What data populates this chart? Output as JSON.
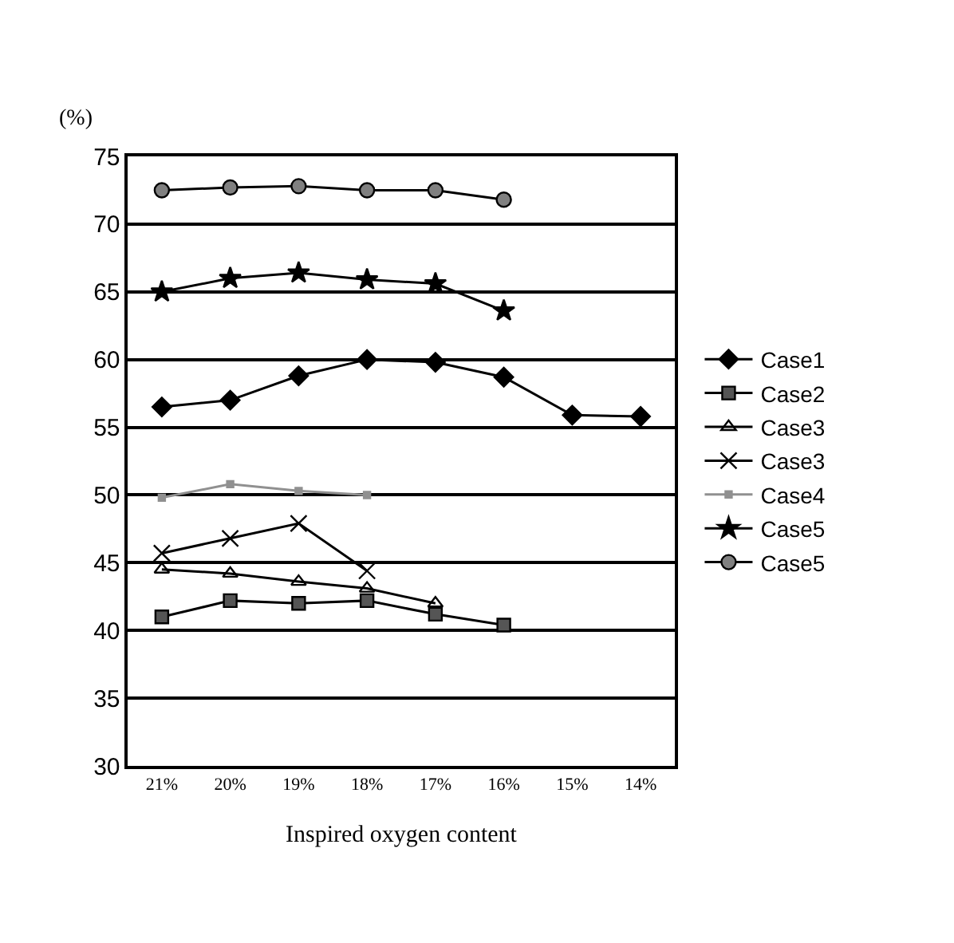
{
  "chart_data": {
    "type": "line",
    "ylabel": "(%)",
    "xlabel": "Inspired oxygen content",
    "categories": [
      "21%",
      "20%",
      "19%",
      "18%",
      "17%",
      "16%",
      "15%",
      "14%"
    ],
    "series": [
      {
        "name": "Case1",
        "color": "#000000",
        "marker": "diamond",
        "values": [
          56.5,
          57.0,
          58.8,
          60.0,
          59.8,
          58.7,
          55.9,
          55.8
        ]
      },
      {
        "name": "Case2",
        "color": "#000000",
        "marker": "square",
        "values": [
          41.0,
          42.2,
          42.0,
          42.2,
          41.2,
          40.4,
          null,
          null
        ]
      },
      {
        "name": "Case3",
        "color": "#000000",
        "marker": "triangle",
        "values": [
          44.5,
          44.2,
          43.6,
          43.1,
          42.0,
          null,
          null,
          null
        ]
      },
      {
        "name": "Case3",
        "color": "#000000",
        "marker": "cross",
        "values": [
          45.7,
          46.8,
          47.9,
          44.4,
          null,
          null,
          null,
          null
        ]
      },
      {
        "name": "Case4",
        "color": "#909090",
        "marker": "square",
        "values": [
          49.8,
          50.8,
          50.3,
          50.0,
          null,
          null,
          null,
          null
        ]
      },
      {
        "name": "Case5",
        "color": "#000000",
        "marker": "star",
        "values": [
          65.0,
          66.0,
          66.4,
          65.9,
          65.6,
          63.6,
          null,
          null
        ]
      },
      {
        "name": "Case5",
        "color": "#000000",
        "marker": "circle",
        "values": [
          72.5,
          72.7,
          72.8,
          72.5,
          72.5,
          71.8,
          null,
          null
        ]
      }
    ],
    "ylim": [
      30,
      75
    ],
    "yticks": [
      30,
      35,
      40,
      45,
      50,
      55,
      60,
      65,
      70,
      75
    ],
    "grid": "y",
    "legend": "right",
    "line_style": "solid"
  }
}
